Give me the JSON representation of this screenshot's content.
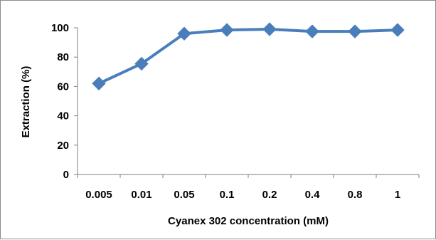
{
  "chart_data": {
    "type": "line",
    "title": "",
    "xlabel": "Cyanex 302 concentration (mM)",
    "ylabel": "Extraction (%)",
    "categories": [
      "0.005",
      "0.01",
      "0.05",
      "0.1",
      "0.2",
      "0.4",
      "0.8",
      "1"
    ],
    "series": [
      {
        "values": [
          62,
          75.5,
          96,
          98.5,
          99,
          97.5,
          97.5,
          98.5
        ]
      }
    ],
    "ylim": [
      0,
      100
    ],
    "yticks": [
      "0",
      "20",
      "40",
      "60",
      "80",
      "100"
    ],
    "grid": false,
    "legend": "none",
    "colors": {
      "series": "#4a7ebb",
      "axis": "#808080",
      "marker": "#4a7ebb"
    }
  }
}
